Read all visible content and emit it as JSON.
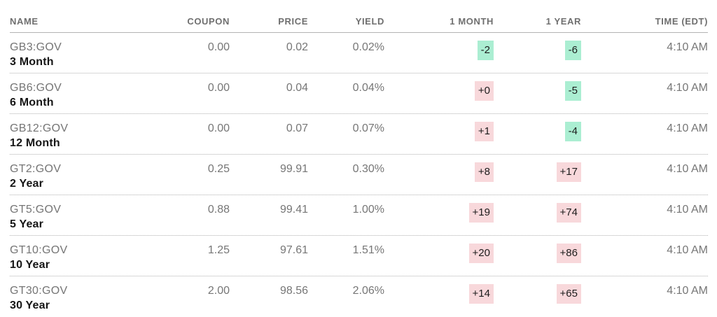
{
  "header": {
    "name": "NAME",
    "coupon": "COUPON",
    "price": "PRICE",
    "yield": "YIELD",
    "one_month": "1 MONTH",
    "one_year": "1 YEAR",
    "time": "TIME (EDT)"
  },
  "rows": [
    {
      "ticker": "GB3:GOV",
      "name": "3 Month",
      "coupon": "0.00",
      "price": "0.02",
      "yield": "0.02%",
      "one_month": "-2",
      "one_month_dir": "down",
      "one_year": "-6",
      "one_year_dir": "down",
      "time": "4:10 AM"
    },
    {
      "ticker": "GB6:GOV",
      "name": "6 Month",
      "coupon": "0.00",
      "price": "0.04",
      "yield": "0.04%",
      "one_month": "+0",
      "one_month_dir": "up",
      "one_year": "-5",
      "one_year_dir": "down",
      "time": "4:10 AM"
    },
    {
      "ticker": "GB12:GOV",
      "name": "12 Month",
      "coupon": "0.00",
      "price": "0.07",
      "yield": "0.07%",
      "one_month": "+1",
      "one_month_dir": "up",
      "one_year": "-4",
      "one_year_dir": "down",
      "time": "4:10 AM"
    },
    {
      "ticker": "GT2:GOV",
      "name": "2 Year",
      "coupon": "0.25",
      "price": "99.91",
      "yield": "0.30%",
      "one_month": "+8",
      "one_month_dir": "up",
      "one_year": "+17",
      "one_year_dir": "up",
      "time": "4:10 AM"
    },
    {
      "ticker": "GT5:GOV",
      "name": "5 Year",
      "coupon": "0.88",
      "price": "99.41",
      "yield": "1.00%",
      "one_month": "+19",
      "one_month_dir": "up",
      "one_year": "+74",
      "one_year_dir": "up",
      "time": "4:10 AM"
    },
    {
      "ticker": "GT10:GOV",
      "name": "10 Year",
      "coupon": "1.25",
      "price": "97.61",
      "yield": "1.51%",
      "one_month": "+20",
      "one_month_dir": "up",
      "one_year": "+86",
      "one_year_dir": "up",
      "time": "4:10 AM"
    },
    {
      "ticker": "GT30:GOV",
      "name": "30 Year",
      "coupon": "2.00",
      "price": "98.56",
      "yield": "2.06%",
      "one_month": "+14",
      "one_month_dir": "up",
      "one_year": "+65",
      "one_year_dir": "up",
      "time": "4:10 AM"
    }
  ],
  "colors": {
    "up_change_badge_bg": "#f8d8db",
    "down_change_badge_bg": "#abeed2",
    "muted_text": "#757575",
    "bold_text": "#161616"
  }
}
